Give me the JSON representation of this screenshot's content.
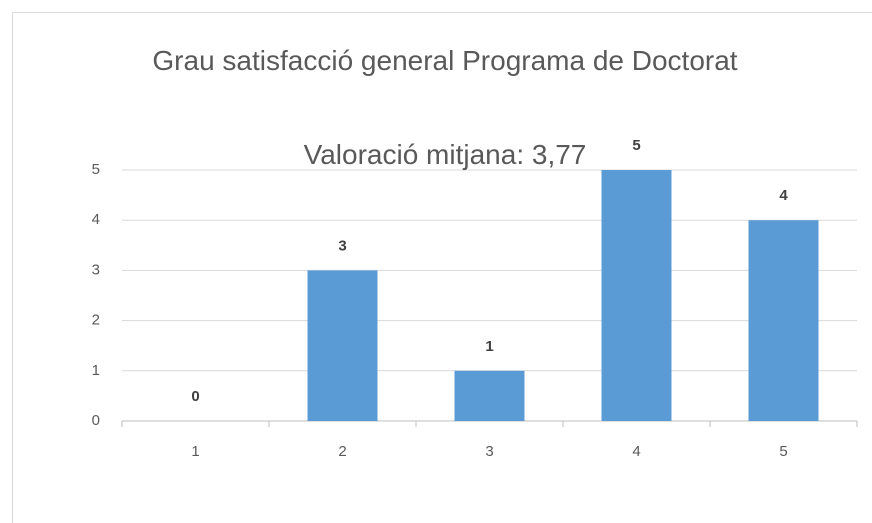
{
  "chart_data": {
    "type": "bar",
    "title": "Grau satisfacció general Programa de Doctorat",
    "subtitle": "Valoració mitjana: 3,77",
    "categories": [
      "1",
      "2",
      "3",
      "4",
      "5"
    ],
    "values": [
      0,
      3,
      1,
      5,
      4
    ],
    "color": "#5b9bd5",
    "ylim": [
      0,
      5
    ],
    "yticks": [
      0,
      1,
      2,
      3,
      4,
      5
    ],
    "grid": true
  }
}
